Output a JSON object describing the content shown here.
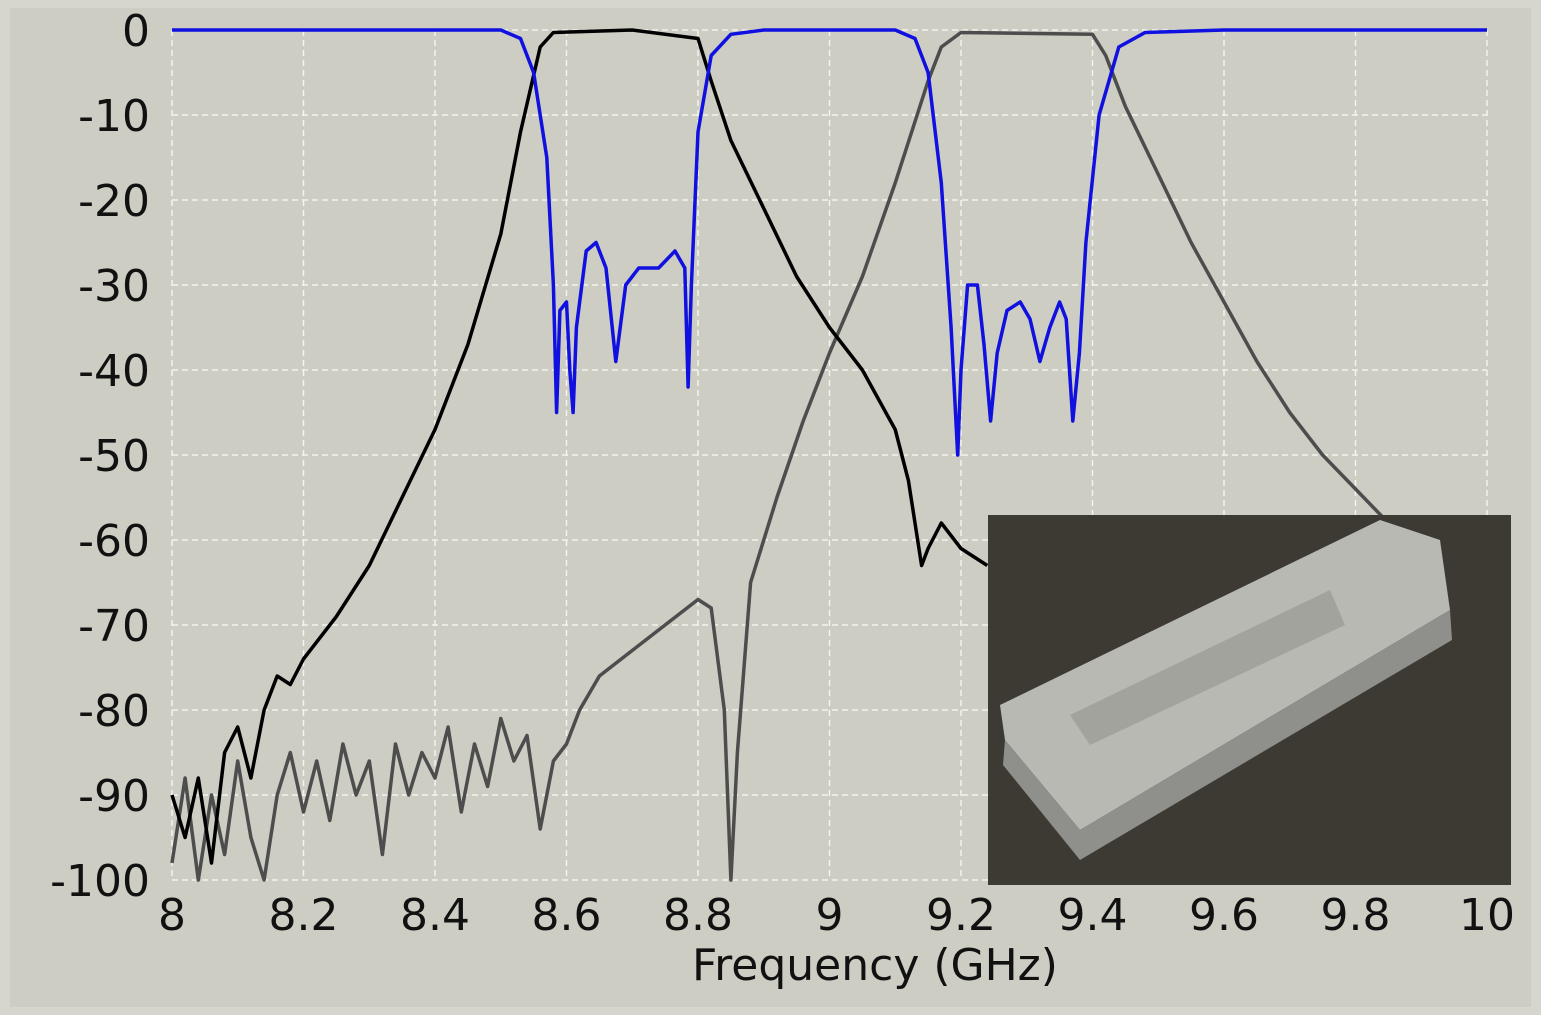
{
  "chart_data": {
    "type": "line",
    "x_label": "Frequency (GHz)",
    "xlim": [
      8,
      10
    ],
    "xticks": [
      8,
      8.2,
      8.4,
      8.6,
      8.8,
      9,
      9.2,
      9.4,
      9.6,
      9.8,
      10
    ],
    "ylim": [
      -100,
      0
    ],
    "yticks": [
      0,
      -10,
      -20,
      -30,
      -40,
      -50,
      -60,
      -70,
      -80,
      -90,
      -100
    ],
    "grid": true,
    "series": [
      {
        "color": "#4d4d4d",
        "x": [
          8.0,
          8.02,
          8.04,
          8.06,
          8.08,
          8.1,
          8.12,
          8.14,
          8.16,
          8.18,
          8.2,
          8.22,
          8.24,
          8.26,
          8.28,
          8.3,
          8.32,
          8.34,
          8.36,
          8.38,
          8.4,
          8.42,
          8.44,
          8.46,
          8.48,
          8.5,
          8.52,
          8.54,
          8.56,
          8.58,
          8.6,
          8.62,
          8.65,
          8.7,
          8.75,
          8.8,
          8.82,
          8.84,
          8.85,
          8.86,
          8.88,
          8.92,
          8.96,
          9.0,
          9.05,
          9.1,
          9.15,
          9.17,
          9.2,
          9.4,
          9.42,
          9.45,
          9.5,
          9.55,
          9.6,
          9.65,
          9.7,
          9.75,
          9.8,
          9.85,
          9.9
        ],
        "values": [
          -98,
          -88,
          -100,
          -90,
          -97,
          -86,
          -95,
          -100,
          -90,
          -85,
          -92,
          -86,
          -93,
          -84,
          -90,
          -86,
          -97,
          -84,
          -90,
          -85,
          -88,
          -82,
          -92,
          -84,
          -89,
          -81,
          -86,
          -83,
          -94,
          -86,
          -84,
          -80,
          -76,
          -73,
          -70,
          -67,
          -68,
          -80,
          -100,
          -85,
          -65,
          -55,
          -46,
          -38,
          -29,
          -18,
          -6,
          -2,
          -0.3,
          -0.5,
          -3,
          -9,
          -17,
          -25,
          -32,
          -39,
          -45,
          -50,
          -54,
          -58,
          -61
        ]
      },
      {
        "color": "#000000",
        "x": [
          8.0,
          8.02,
          8.04,
          8.06,
          8.08,
          8.1,
          8.12,
          8.14,
          8.16,
          8.18,
          8.2,
          8.25,
          8.3,
          8.35,
          8.4,
          8.45,
          8.5,
          8.53,
          8.56,
          8.58,
          8.7,
          8.8,
          8.82,
          8.85,
          8.9,
          8.95,
          9.0,
          9.05,
          9.1,
          9.12,
          9.14,
          9.15,
          9.17,
          9.2,
          9.24
        ],
        "values": [
          -90,
          -95,
          -88,
          -98,
          -85,
          -82,
          -88,
          -80,
          -76,
          -77,
          -74,
          -69,
          -63,
          -55,
          -47,
          -37,
          -24,
          -12,
          -2,
          -0.3,
          0,
          -1,
          -6,
          -13,
          -21,
          -29,
          -35,
          -40,
          -47,
          -53,
          -63,
          -61,
          -58,
          -61,
          -63
        ]
      },
      {
        "color": "#1010e0",
        "x": [
          8.0,
          8.5,
          8.53,
          8.55,
          8.57,
          8.58,
          8.585,
          8.59,
          8.6,
          8.605,
          8.61,
          8.615,
          8.63,
          8.645,
          8.66,
          8.675,
          8.69,
          8.71,
          8.74,
          8.765,
          8.78,
          8.785,
          8.79,
          8.8,
          8.82,
          8.85,
          8.9,
          9.1,
          9.13,
          9.15,
          9.17,
          9.185,
          9.195,
          9.2,
          9.21,
          9.225,
          9.235,
          9.245,
          9.255,
          9.27,
          9.29,
          9.305,
          9.32,
          9.335,
          9.35,
          9.36,
          9.37,
          9.38,
          9.39,
          9.41,
          9.44,
          9.48,
          9.6,
          10.0
        ],
        "values": [
          0,
          0,
          -1,
          -5,
          -15,
          -30,
          -45,
          -33,
          -32,
          -40,
          -45,
          -35,
          -26,
          -25,
          -28,
          -39,
          -30,
          -28,
          -28,
          -26,
          -28,
          -42,
          -30,
          -12,
          -3,
          -0.5,
          0,
          0,
          -1,
          -5,
          -18,
          -35,
          -50,
          -40,
          -30,
          -30,
          -37,
          -46,
          -38,
          -33,
          -32,
          -34,
          -39,
          -35,
          -32,
          -34,
          -46,
          -38,
          -25,
          -10,
          -2,
          -0.3,
          0,
          0
        ]
      }
    ]
  }
}
